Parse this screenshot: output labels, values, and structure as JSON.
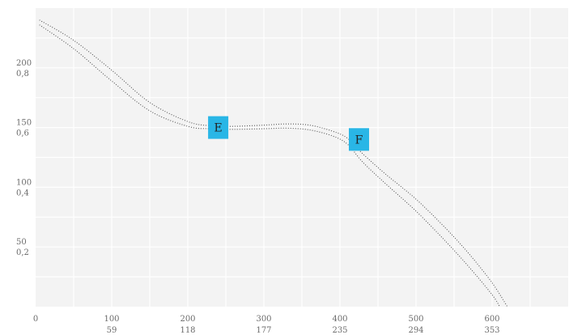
{
  "chart_data": {
    "type": "line",
    "title": "",
    "xlabel": "",
    "ylabel": "",
    "xlim": [
      0,
      700
    ],
    "ylim": [
      0,
      250
    ],
    "grid": true,
    "x_ticks": [
      {
        "value": 0,
        "label": "0",
        "sublabel": ""
      },
      {
        "value": 100,
        "label": "100",
        "sublabel": "59"
      },
      {
        "value": 200,
        "label": "200",
        "sublabel": "118"
      },
      {
        "value": 300,
        "label": "300",
        "sublabel": "177"
      },
      {
        "value": 400,
        "label": "400",
        "sublabel": "235"
      },
      {
        "value": 500,
        "label": "500",
        "sublabel": "294"
      },
      {
        "value": 600,
        "label": "600",
        "sublabel": "353"
      }
    ],
    "y_ticks": [
      {
        "value": 50,
        "label": "50",
        "sublabel": "0,2"
      },
      {
        "value": 100,
        "label": "100",
        "sublabel": "0,4"
      },
      {
        "value": 150,
        "label": "150",
        "sublabel": "0,6"
      },
      {
        "value": 200,
        "label": "200",
        "sublabel": "0,8"
      }
    ],
    "series": [
      {
        "x": [
          5,
          50,
          100,
          150,
          200,
          230,
          260,
          300,
          330,
          360,
          390,
          410,
          430,
          460,
          500,
          540,
          570,
          600,
          620
        ],
        "y": [
          240,
          223,
          198,
          171,
          155,
          151.5,
          151,
          152,
          153,
          152,
          147,
          141,
          128,
          111,
          90,
          65,
          44,
          20,
          0
        ],
        "style": "dotted",
        "color": "#555555"
      },
      {
        "x": [
          5,
          50,
          100,
          150,
          200,
          230,
          260,
          300,
          330,
          360,
          390,
          410,
          430,
          460,
          500,
          540,
          570,
          600,
          610
        ],
        "y": [
          236,
          216,
          189,
          164,
          151,
          149,
          148.5,
          149,
          149.5,
          148,
          143,
          136,
          121,
          103,
          80,
          54,
          33,
          10,
          0
        ],
        "style": "dotted",
        "color": "#555555"
      }
    ],
    "annotations": [
      {
        "text": "E",
        "x": 240,
        "y": 150,
        "color": "#29b6e6"
      },
      {
        "text": "F",
        "x": 425,
        "y": 140,
        "color": "#29b6e6"
      }
    ]
  }
}
